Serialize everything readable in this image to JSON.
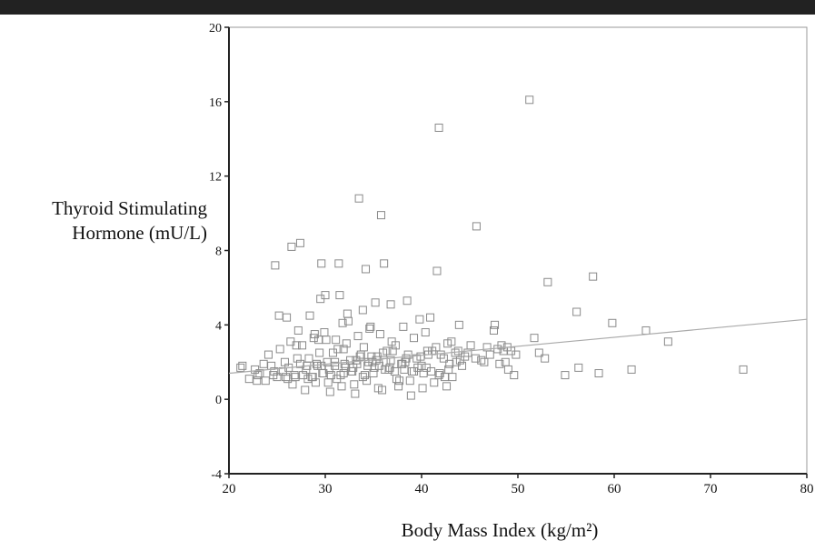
{
  "chart_data": {
    "type": "scatter",
    "title": "",
    "ylabel_lines": [
      "Thyroid Stimulating",
      "Hormone (mU/L)"
    ],
    "xlabel": "Body Mass Index (kg/m²)",
    "xlim": [
      20,
      80
    ],
    "ylim": [
      -4,
      20
    ],
    "x_ticks": [
      "20",
      "30",
      "40",
      "50",
      "60",
      "70",
      "80"
    ],
    "y_ticks": [
      "-4",
      "0",
      "4",
      "8",
      "12",
      "16",
      "20"
    ],
    "grid": false,
    "legend": "none",
    "marker": "open-square",
    "colors": {
      "marker": "#8a8a8a",
      "axis": "#222222",
      "frame": "#9a9a9a",
      "fit_line": "#aaaaaa",
      "top_rule": "#222222"
    },
    "fit_line": {
      "x": [
        20,
        80
      ],
      "y": [
        1.4,
        4.3
      ]
    },
    "points": {
      "x": [
        51.2,
        41.8,
        33.5,
        35.8,
        45.7,
        27.4,
        26.5,
        24.8,
        29.6,
        31.4,
        36.1,
        34.2,
        41.6,
        53.1,
        57.8,
        30.0,
        31.5,
        29.5,
        28.4,
        26.0,
        25.2,
        38.5,
        36.8,
        35.2,
        33.9,
        32.3,
        39.8,
        40.9,
        43.9,
        47.6,
        56.1,
        59.8,
        63.3,
        65.6,
        61.8,
        58.4,
        56.3,
        54.9,
        52.8,
        51.7,
        52.2,
        73.4,
        48.9,
        49.3,
        49.6,
        48.3,
        48.7,
        47.9,
        47.1,
        47.5,
        46.2,
        44.8,
        44.2,
        43.6,
        42.9,
        42.3,
        41.8,
        41.1,
        40.5,
        39.9,
        39.2,
        38.6,
        38.0,
        37.4,
        36.8,
        36.2,
        35.6,
        35.0,
        34.5,
        33.9,
        33.3,
        32.7,
        32.1,
        31.6,
        31.0,
        30.4,
        29.8,
        29.2,
        28.6,
        28.0,
        27.4,
        26.8,
        26.2,
        25.6,
        25.0,
        24.4,
        23.8,
        23.2,
        22.7,
        22.1,
        21.4,
        24.1,
        25.3,
        26.4,
        27.6,
        28.8,
        29.9,
        31.1,
        32.2,
        33.4,
        34.6,
        35.7,
        36.9,
        38.1,
        39.2,
        40.4,
        41.5,
        42.7,
        43.8,
        45.1,
        30.3,
        31.7,
        33.0,
        34.3,
        35.5,
        29.0,
        27.9,
        26.6,
        37.6,
        38.8,
        40.1,
        41.3,
        42.6,
        28.3,
        30.8,
        32.6,
        34.8,
        36.4,
        38.3,
        40.7,
        25.8,
        27.1,
        29.4,
        31.9,
        33.6,
        35.3,
        37.0,
        39.5,
        42.0,
        23.6,
        24.7,
        26.9,
        28.1,
        29.7,
        31.2,
        32.9,
        34.1,
        36.6,
        37.9,
        39.0,
        41.9,
        43.2,
        22.9,
        30.5,
        33.1,
        35.9,
        38.9,
        31.8,
        34.7,
        28.9,
        27.2,
        30.1,
        32.4,
        44.5,
        46.8,
        48.1,
        49.0,
        21.2,
        23.0,
        37.3,
        40.0,
        43.1,
        45.6,
        34.0,
        36.0,
        28.2,
        30.6,
        32.8,
        35.1,
        27.0,
        29.3,
        31.3,
        33.7,
        36.3,
        38.2,
        40.2,
        42.4,
        48.5,
        49.8,
        46.5,
        44.0,
        26.1,
        24.6,
        25.9,
        37.7,
        39.6,
        41.0,
        34.4,
        32.0,
        30.2,
        28.7,
        35.4,
        37.2,
        42.8,
        43.5,
        29.1,
        31.0,
        33.2,
        36.7,
        38.4,
        40.6,
        27.7,
        29.6,
        31.9,
        34.9
      ],
      "y": [
        16.1,
        14.6,
        10.8,
        9.9,
        9.3,
        8.4,
        8.2,
        7.2,
        7.3,
        7.3,
        7.3,
        7.0,
        6.9,
        6.3,
        6.6,
        5.6,
        5.6,
        5.4,
        4.5,
        4.4,
        4.5,
        5.3,
        5.1,
        5.2,
        4.8,
        4.6,
        4.3,
        4.4,
        4.0,
        4.0,
        4.7,
        4.1,
        3.7,
        3.1,
        1.6,
        1.4,
        1.7,
        1.3,
        2.2,
        3.3,
        2.5,
        1.6,
        2.8,
        2.6,
        1.3,
        2.9,
        2.0,
        2.7,
        2.4,
        3.7,
        2.1,
        2.5,
        1.8,
        2.0,
        1.9,
        2.2,
        1.3,
        2.6,
        1.7,
        2.3,
        1.5,
        2.4,
        1.9,
        1.1,
        2.1,
        1.6,
        1.8,
        1.4,
        2.0,
        1.2,
        1.9,
        1.5,
        1.7,
        1.3,
        2.0,
        1.6,
        1.4,
        1.8,
        1.2,
        1.6,
        1.9,
        1.3,
        1.7,
        1.5,
        1.2,
        1.8,
        1.0,
        1.4,
        1.6,
        1.1,
        1.8,
        2.4,
        2.7,
        3.1,
        2.9,
        3.3,
        3.6,
        3.2,
        3.0,
        3.4,
        3.8,
        3.5,
        3.1,
        3.9,
        3.3,
        3.6,
        2.8,
        3.0,
        2.6,
        2.9,
        0.9,
        0.7,
        0.8,
        1.0,
        0.6,
        0.9,
        0.5,
        0.8,
        0.7,
        1.0,
        0.6,
        0.9,
        0.7,
        2.2,
        2.5,
        2.1,
        2.3,
        2.6,
        2.0,
        2.4,
        2.0,
        2.2,
        2.5,
        2.7,
        2.3,
        2.1,
        2.6,
        2.2,
        2.4,
        1.9,
        1.5,
        1.2,
        1.8,
        1.4,
        1.1,
        1.7,
        1.3,
        1.6,
        1.9,
        1.5,
        1.4,
        1.2,
        1.0,
        0.4,
        0.3,
        0.5,
        0.2,
        4.1,
        3.9,
        3.5,
        3.7,
        3.2,
        4.2,
        2.3,
        2.8,
        1.9,
        1.6,
        1.7,
        1.3,
        2.9,
        1.8,
        3.1,
        2.2,
        2.8,
        2.5,
        1.1,
        1.3,
        1.5,
        1.7,
        2.9,
        3.2,
        2.7,
        2.4,
        2.0,
        1.6,
        1.4,
        1.2,
        2.6,
        2.4,
        2.0,
        2.1,
        1.1,
        1.3,
        1.2,
        1.0,
        1.7,
        1.5,
        1.8,
        1.9,
        2.0,
        1.2,
        2.3,
        1.5,
        1.6,
        2.5,
        1.9,
        1.8,
        2.1,
        1.7,
        2.2,
        2.6,
        1.3,
        1.8,
        1.4,
        2.0
      ]
    }
  }
}
